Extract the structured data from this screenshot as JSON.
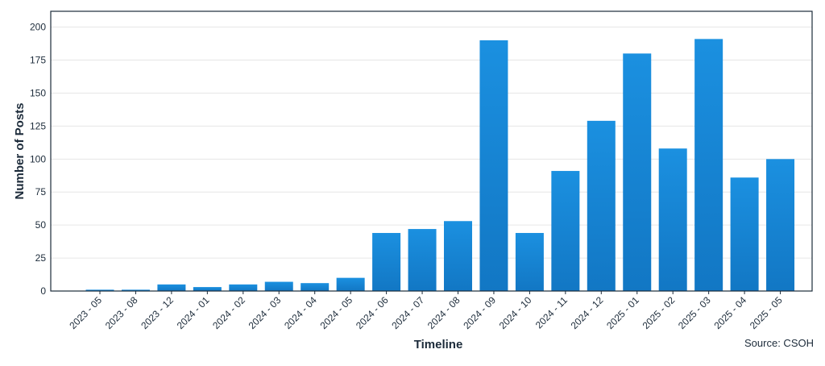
{
  "chart_data": {
    "type": "bar",
    "title": "",
    "xlabel": "Timeline",
    "ylabel": "Number of Posts",
    "source": "Source: CSOH",
    "ylim": [
      0,
      212
    ],
    "yticks": [
      0,
      25,
      50,
      75,
      100,
      125,
      150,
      175,
      200
    ],
    "grid": true,
    "legend": "none",
    "categories": [
      "2023 - 05",
      "2023 - 08",
      "2023 - 12",
      "2024 - 01",
      "2024 - 02",
      "2024 - 03",
      "2024 - 04",
      "2024 - 05",
      "2024 - 06",
      "2024 - 07",
      "2024 - 08",
      "2024 - 09",
      "2024 - 10",
      "2024 - 11",
      "2024 - 12",
      "2025 - 01",
      "2025 - 02",
      "2025 - 03",
      "2025 - 04",
      "2025 - 05"
    ],
    "values": [
      1,
      1,
      5,
      3,
      5,
      7,
      6,
      10,
      44,
      47,
      53,
      190,
      44,
      91,
      129,
      180,
      108,
      191,
      86,
      100
    ],
    "colors": {
      "bar_top": "#1b90e0",
      "bar_bottom": "#1277c4",
      "axis": "#1c2b3a",
      "grid": "#e6e6e6"
    }
  }
}
